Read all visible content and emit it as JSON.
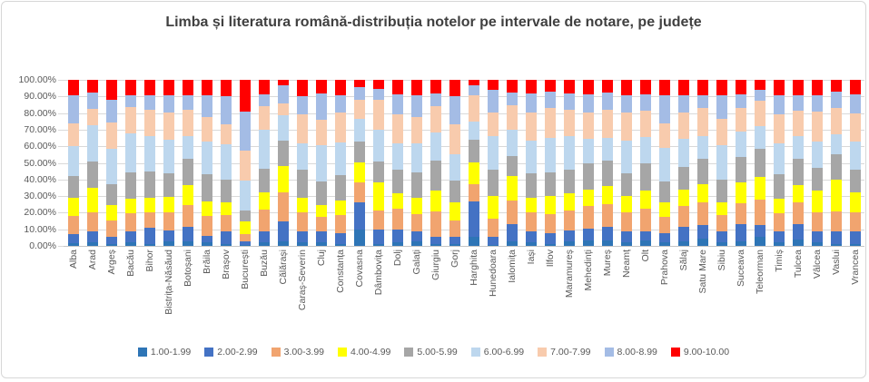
{
  "chart": {
    "title": "Limba și literatura română-distribuția notelor pe intervale de notare, pe județe"
  },
  "chart_data": {
    "type": "bar",
    "stacked": true,
    "orientation": "vertical",
    "title": "Limba și literatura română-distribuția notelor pe intervale de notare, pe județe",
    "xlabel": "",
    "ylabel": "",
    "unit": "percent",
    "ylim": [
      0,
      100
    ],
    "grid": true,
    "legend_position": "bottom",
    "yticks": [
      "0.00%",
      "10.00%",
      "20.00%",
      "30.00%",
      "40.00%",
      "50.00%",
      "60.00%",
      "70.00%",
      "80.00%",
      "90.00%",
      "100.00%"
    ],
    "categories": [
      "Alba",
      "Arad",
      "Argeș",
      "Bacău",
      "Bihor",
      "Bistrița-Năsăud",
      "Botoșani",
      "Brăila",
      "Brașov",
      "București",
      "Buzău",
      "Călărași",
      "Caraș-Severin",
      "Cluj",
      "Constanța",
      "Covasna",
      "Dâmbovița",
      "Dolj",
      "Galați",
      "Giurgiu",
      "Gorj",
      "Harghita",
      "Hunedoara",
      "Ialomița",
      "Iași",
      "Ilfov",
      "Maramureș",
      "Mehedinți",
      "Mureș",
      "Neamț",
      "Olt",
      "Prahova",
      "Sălaj",
      "Satu Mare",
      "Sibiu",
      "Suceava",
      "Teleorman",
      "Timiș",
      "Tulcea",
      "Vâlcea",
      "Vaslui",
      "Vrancea"
    ],
    "series": [
      {
        "name": "1.00-1.99",
        "color": "#2E75B6",
        "values": [
          1.5,
          2,
          1,
          2,
          1,
          2.5,
          2.5,
          2,
          1,
          0.5,
          2,
          2.5,
          2,
          2,
          1,
          10,
          1,
          2,
          2.5,
          1,
          1,
          5.5,
          0.5,
          2.5,
          2,
          1,
          2.5,
          3.5,
          3.5,
          2,
          3.5,
          2,
          2.5,
          4.5,
          2,
          3,
          5.5,
          2,
          4,
          2,
          1,
          1
        ]
      },
      {
        "name": "2.00-2.99",
        "color": "#4472C4",
        "values": [
          5.5,
          6.5,
          4.5,
          6.5,
          10,
          7,
          9,
          4,
          7.5,
          2,
          7,
          12.5,
          6.5,
          6.5,
          6.5,
          16,
          9,
          8,
          6.5,
          4.5,
          4.5,
          21.5,
          5,
          10.5,
          7,
          6.5,
          7,
          7,
          8,
          6.5,
          5.5,
          5.5,
          9,
          8,
          6.5,
          10,
          7,
          6.5,
          9,
          7,
          8,
          8
        ]
      },
      {
        "name": "3.00-3.99",
        "color": "#F1A46F",
        "values": [
          11,
          12,
          10,
          11,
          9,
          11,
          13,
          12,
          10,
          4.5,
          13,
          17,
          11.5,
          9,
          11,
          12,
          11.5,
          12.5,
          10,
          15.5,
          10,
          10,
          11,
          14.5,
          11,
          11.5,
          12,
          13.5,
          13.5,
          11.5,
          13.5,
          10,
          12.5,
          13.5,
          10,
          12.5,
          15.5,
          11,
          13.5,
          11,
          12,
          11
        ]
      },
      {
        "name": "4.00-4.99",
        "color": "#FFFF00",
        "values": [
          11,
          14.5,
          9,
          9,
          9,
          9,
          12,
          9,
          8,
          8,
          10,
          16,
          9,
          7,
          9,
          12.5,
          17,
          9,
          10,
          12.5,
          10.5,
          13.5,
          13.5,
          14.5,
          9,
          11,
          10,
          10,
          11,
          10,
          11,
          9,
          10,
          11,
          8,
          12.5,
          13.5,
          9,
          10,
          13.5,
          19,
          12.5
        ]
      },
      {
        "name": "5.00-5.99",
        "color": "#A6A6A6",
        "values": [
          13,
          16,
          12.5,
          16,
          16,
          14.5,
          16,
          16,
          13.5,
          6.5,
          14.5,
          15.5,
          17,
          14.5,
          15,
          12.5,
          12.5,
          14.5,
          15.5,
          18,
          13.5,
          13.5,
          16,
          12,
          14.5,
          14.5,
          14.5,
          16,
          15.5,
          13.5,
          16,
          12.5,
          13.5,
          15.5,
          13.5,
          15.5,
          17,
          14.5,
          16,
          13.5,
          15,
          13.5
        ]
      },
      {
        "name": "6.00-6.99",
        "color": "#BDD7EE",
        "values": [
          18,
          21.5,
          21.5,
          23.5,
          21,
          20,
          13.5,
          20,
          21,
          18,
          23.5,
          15,
          16,
          21.5,
          20,
          13.5,
          19,
          16,
          17,
          17,
          15.5,
          11,
          20,
          16,
          20,
          20.5,
          20,
          14.5,
          13.5,
          20,
          16,
          20,
          17,
          13.5,
          20.5,
          15.5,
          13.5,
          19,
          13.5,
          16,
          12.5,
          17
        ]
      },
      {
        "name": "7.00-7.99",
        "color": "#F8CBAD",
        "values": [
          14,
          10,
          16,
          15.5,
          16,
          16.5,
          16,
          14.5,
          12.5,
          18,
          14,
          7.5,
          17,
          15.5,
          18,
          11.5,
          18,
          17,
          16,
          15.5,
          18,
          15.5,
          14.5,
          15,
          17,
          18,
          16,
          16,
          17,
          17,
          16,
          15,
          16,
          17,
          16,
          14,
          15.5,
          17,
          15.5,
          18,
          15.5,
          17
        ]
      },
      {
        "name": "8.00-8.99",
        "color": "#A4BCE5",
        "values": [
          16.5,
          10,
          13.5,
          7.5,
          9,
          10,
          9,
          13.5,
          16.5,
          23.5,
          7.5,
          10.5,
          11,
          16,
          10.5,
          7.5,
          6.5,
          12.5,
          13.5,
          8,
          17,
          6,
          13.5,
          7.5,
          11.5,
          10,
          10,
          11,
          10.5,
          10.5,
          10,
          17,
          10,
          8,
          14.5,
          8.5,
          6.5,
          11.5,
          9.5,
          10,
          10,
          11.5
        ]
      },
      {
        "name": "9.00-10.00",
        "color": "#FF0000",
        "values": [
          9.5,
          7.5,
          12,
          9,
          9,
          9.5,
          9,
          9,
          10,
          19,
          8.5,
          3.5,
          10,
          8,
          9,
          4.5,
          5.5,
          8.5,
          9,
          8,
          10,
          3.5,
          6,
          7.5,
          8,
          7,
          8,
          8.5,
          7.5,
          9,
          8.5,
          9,
          9.5,
          9,
          9,
          8.5,
          6,
          9.5,
          9,
          9,
          7,
          8.5
        ]
      }
    ]
  }
}
